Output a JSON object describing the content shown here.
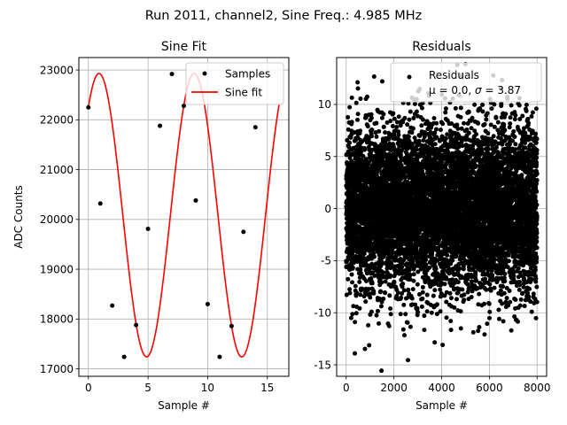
{
  "figure": {
    "suptitle": "Run 2011, channel2, Sine Freq.: 4.985 MHz"
  },
  "chart_data": [
    {
      "type": "line",
      "title": "Sine Fit",
      "xlabel": "Sample #",
      "ylabel": "ADC Counts",
      "xlim": [
        -0.8,
        16.8
      ],
      "ylim": [
        16850,
        23250
      ],
      "xticks": [
        0,
        5,
        10,
        15
      ],
      "yticks": [
        17000,
        18000,
        19000,
        20000,
        21000,
        22000,
        23000
      ],
      "grid": true,
      "legend_placement": "top-right",
      "series": [
        {
          "name": "Samples",
          "style": "markers",
          "color": "#000000",
          "x": [
            0,
            1,
            2,
            3,
            4,
            5,
            6,
            7,
            8,
            9,
            10,
            11,
            12,
            13,
            14
          ],
          "y": [
            22250,
            20320,
            18270,
            17240,
            17880,
            19810,
            21880,
            22920,
            22280,
            20380,
            18300,
            17240,
            17860,
            19750,
            21850
          ]
        },
        {
          "name": "Sine fit",
          "style": "line",
          "color": "#ff0000",
          "model": {
            "x_start": 0,
            "x_end": 16,
            "offset": 20085,
            "amplitude": 2845,
            "period": 7.976,
            "phase": 0.868
          }
        }
      ]
    },
    {
      "type": "scatter",
      "title": "Residuals",
      "xlabel": "Sample #",
      "ylabel": "",
      "xlim": [
        -400,
        8400
      ],
      "ylim": [
        -16.1,
        14.5
      ],
      "xticks": [
        0,
        2000,
        4000,
        6000,
        8000
      ],
      "yticks": [
        -15,
        -10,
        -5,
        0,
        5,
        10
      ],
      "grid": true,
      "legend_placement": "top-right",
      "series": [
        {
          "name": "Residuals",
          "color": "#000000",
          "n_points": 8000,
          "mean": 0.0,
          "std": 3.87,
          "x_range": [
            0,
            8000
          ]
        }
      ],
      "legend_line2_prefix": "μ = 0.0, ",
      "legend_sigma_symbol": "σ",
      "legend_line2_suffix": " = 3.87"
    }
  ]
}
